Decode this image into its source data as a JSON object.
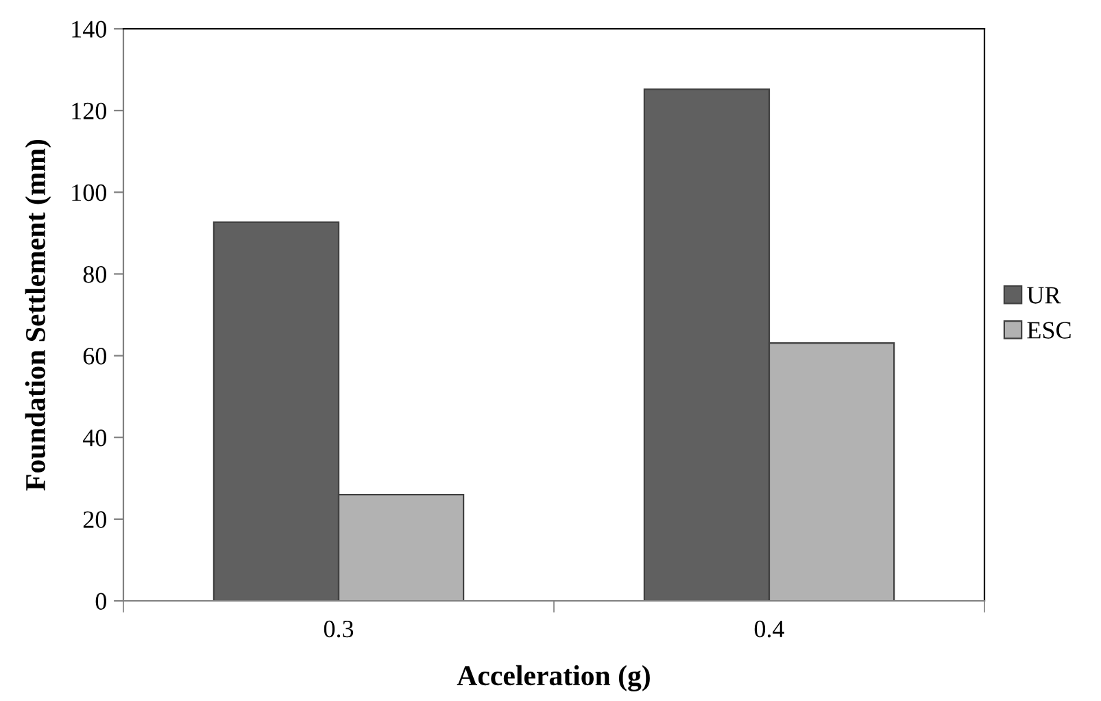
{
  "chart_data": {
    "type": "bar",
    "xlabel": "Acceleration (g)",
    "ylabel": "Foundation Settlement (mm)",
    "categories": [
      "0.3",
      "0.4"
    ],
    "series": [
      {
        "name": "UR",
        "color": "#606060",
        "values": [
          92.7,
          125.2
        ]
      },
      {
        "name": "ESC",
        "color": "#b2b2b2",
        "values": [
          26,
          63.1
        ]
      }
    ],
    "ylim": [
      0,
      140
    ],
    "yticks": [
      0,
      20,
      40,
      60,
      80,
      100,
      120,
      140
    ],
    "grid": false,
    "legend": "right"
  }
}
